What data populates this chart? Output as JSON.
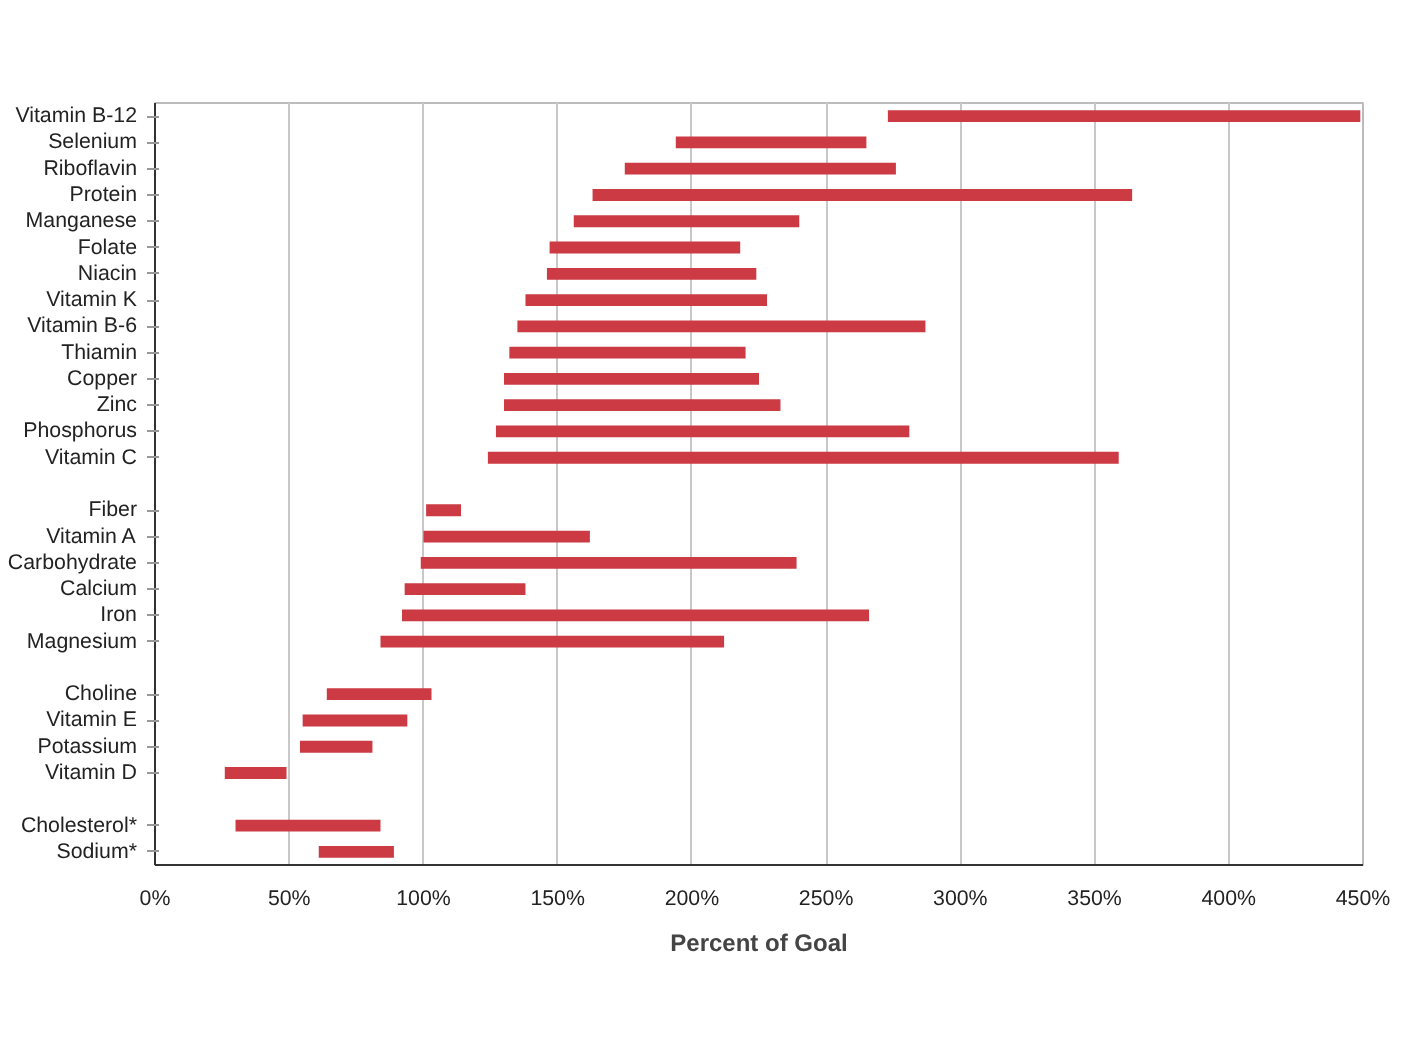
{
  "chart_data": {
    "type": "bar",
    "orientation": "horizontal",
    "xlabel": "Percent of Goal",
    "categories": [
      "Vitamin B-12",
      "Selenium",
      "Riboflavin",
      "Protein",
      "Manganese",
      "Folate",
      "Niacin",
      "Vitamin K",
      "Vitamin B-6",
      "Thiamin",
      "Copper",
      "Zinc",
      "Phosphorus",
      "Vitamin C",
      null,
      "Fiber",
      "Vitamin A",
      "Carbohydrate",
      "Calcium",
      "Iron",
      "Magnesium",
      null,
      "Choline",
      "Vitamin E",
      "Potassium",
      "Vitamin D",
      null,
      "Cholesterol*",
      "Sodium*"
    ],
    "base": [
      273,
      194,
      175,
      163,
      156,
      147,
      146,
      138,
      135,
      132,
      130,
      130,
      127,
      124,
      null,
      101,
      100,
      99,
      93,
      92,
      84,
      null,
      64,
      55,
      54,
      26,
      null,
      30,
      61
    ],
    "values": [
      176,
      71,
      101,
      201,
      84,
      71,
      78,
      90,
      152,
      88,
      95,
      103,
      154,
      235,
      null,
      13,
      62,
      140,
      45,
      174,
      128,
      null,
      39,
      39,
      27,
      23,
      null,
      54,
      28
    ],
    "color": "#cc3a44",
    "xlim": [
      0,
      450
    ],
    "xticks": [
      {
        "value": 0,
        "label": "0%"
      },
      {
        "value": 50,
        "label": "50%"
      },
      {
        "value": 100,
        "label": "100%"
      },
      {
        "value": 150,
        "label": "150%"
      },
      {
        "value": 200,
        "label": "200%"
      },
      {
        "value": 250,
        "label": "250%"
      },
      {
        "value": 300,
        "label": "300%"
      },
      {
        "value": 350,
        "label": "350%"
      },
      {
        "value": 400,
        "label": "400%"
      },
      {
        "value": 450,
        "label": "450%"
      }
    ],
    "grid": "x"
  }
}
